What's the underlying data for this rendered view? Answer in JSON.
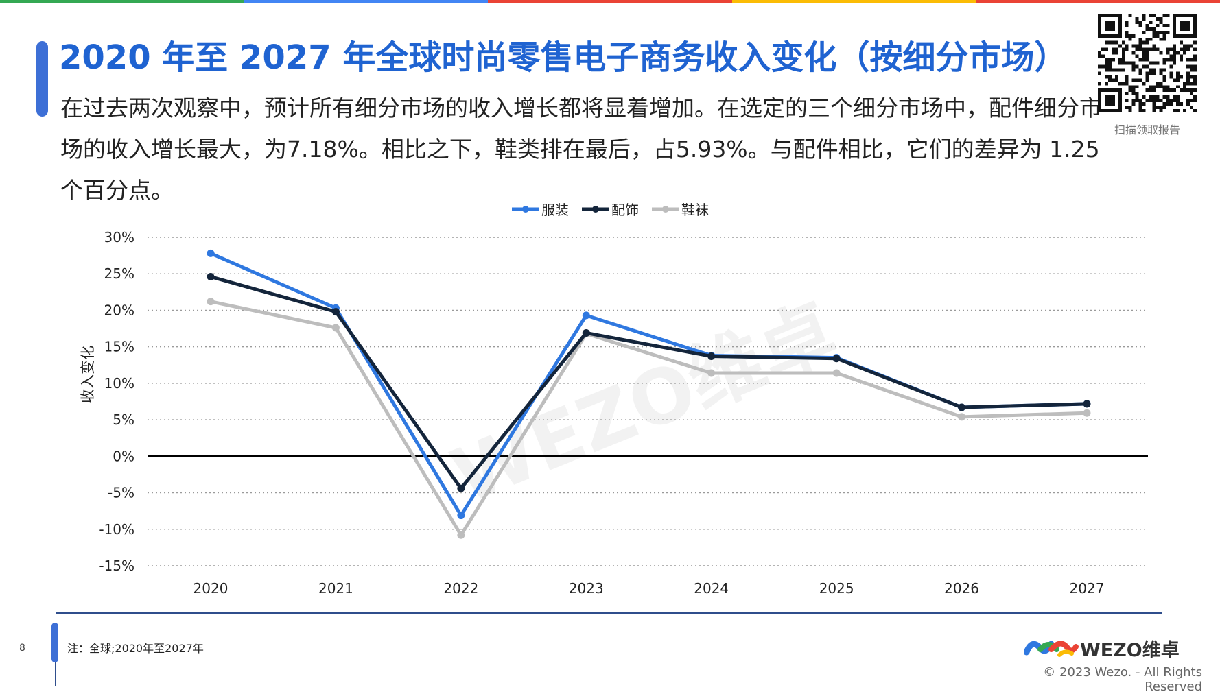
{
  "colors": {
    "top_bar": [
      "#34a853",
      "#4285f4",
      "#ea4335",
      "#fbbc05",
      "#ea4335"
    ],
    "title": "#1f63d1",
    "accent": "#3d6fd6",
    "series": [
      "#2f78e0",
      "#14253b",
      "#bdbdbd"
    ],
    "grid": "#9a9a9a",
    "zero_line": "#000000",
    "footer_line": "#2f4e8c"
  },
  "header": {
    "title": "2020 年至 2027 年全球时尚零售电子商务收入变化（按细分市场）",
    "description": "在过去两次观察中，预计所有细分市场的收入增长都将显着增加。在选定的三个细分市场中，配件细分市场的收入增长最大，为7.18%。相比之下，鞋类排在最后，占5.93%。与配件相比，它们的差异为 1.25 个百分点。",
    "qr_caption": "扫描领取报告"
  },
  "watermark": "WEZO维卓",
  "chart_data": {
    "type": "line",
    "categories": [
      "2020",
      "2021",
      "2022",
      "2023",
      "2024",
      "2025",
      "2026",
      "2027"
    ],
    "series": [
      {
        "name": "服装",
        "values": [
          27.8,
          20.3,
          -8.1,
          19.3,
          13.8,
          13.5,
          6.7,
          7.18
        ]
      },
      {
        "name": "配饰",
        "values": [
          24.6,
          19.8,
          -4.4,
          16.9,
          13.7,
          13.4,
          6.7,
          7.18
        ]
      },
      {
        "name": "鞋袜",
        "values": [
          21.2,
          17.6,
          -10.8,
          16.8,
          11.4,
          11.4,
          5.4,
          5.93
        ]
      }
    ],
    "ylabel": "收入变化",
    "ylim": [
      -15,
      30
    ],
    "yticks": [
      30,
      25,
      20,
      15,
      10,
      5,
      0,
      -5,
      -10,
      -15
    ],
    "ytick_labels": [
      "30%",
      "25%",
      "20%",
      "15%",
      "10%",
      "5%",
      "0%",
      "-5%",
      "-10%",
      "-15%"
    ],
    "grid": true,
    "legend_position": "top-center"
  },
  "footer": {
    "page_number": "8",
    "note": "注：全球;2020年至2027年",
    "logo_text": "WEZO维卓",
    "copyright": "© 2023 Wezo. - All Rights Reserved"
  }
}
